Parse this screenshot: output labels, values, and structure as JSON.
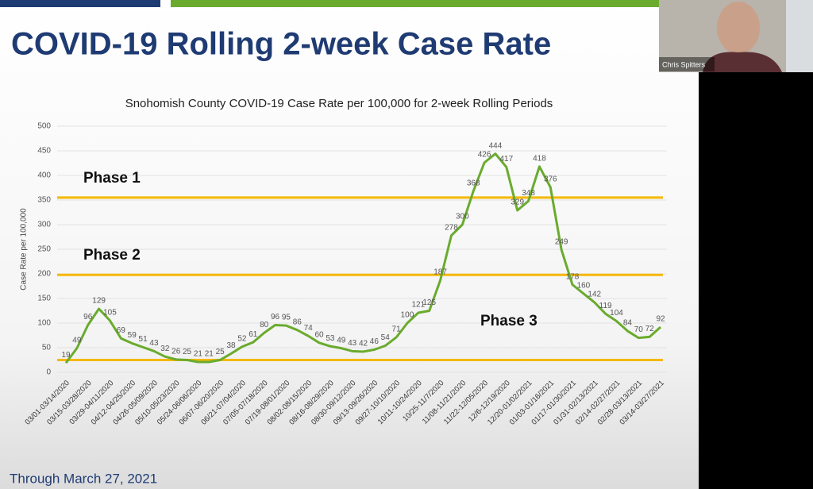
{
  "slide_title": "COVID-19 Rolling 2-week Case Rate",
  "footer": "Through March 27, 2021",
  "participant": {
    "name": "Chris Spitters"
  },
  "chart_data": {
    "type": "line",
    "title": "Snohomish County COVID-19 Case Rate per 100,000 for 2-week Rolling Periods",
    "y_label": "Case Rate per 100,000",
    "categories": [
      "03/01-03/14/2020",
      null,
      "03/15-03/28/2020",
      null,
      "03/29-04/11/2020",
      null,
      "04/12-04/25/2020",
      null,
      "04/26-05/09/2020",
      null,
      "05/10-05/23/2020",
      null,
      "05/24-06/06/2020",
      null,
      "06/07-06/20/2020",
      null,
      "06/21-07/04/2020",
      null,
      "07/05-07/18/2020",
      null,
      "07/19-08/01/2020",
      null,
      "08/02-08/15/2020",
      null,
      "08/16-08/29/2020",
      null,
      "08/30-09/12/2020",
      null,
      "09/13-09/26/2020",
      null,
      "09/27-10/10/2020",
      null,
      "10/11-10/24/2020",
      null,
      "10/25-11/7/2020",
      null,
      "11/08-11/21/2020",
      null,
      "11/22-12/05/2020",
      null,
      "12/6-12/19/2020",
      null,
      "12/20-01/02/2021",
      null,
      "01/03-01/16/2021",
      null,
      "01/17-01/30/2021",
      null,
      "01/31-02/13/2021",
      null,
      "02/14-02/27/2021",
      null,
      "02/28-03/13/2021",
      null,
      "03/14-03/27/2021"
    ],
    "values": [
      19,
      49,
      96,
      129,
      105,
      69,
      59,
      51,
      43,
      32,
      26,
      25,
      21,
      21,
      25,
      38,
      52,
      61,
      80,
      96,
      95,
      86,
      74,
      60,
      53,
      49,
      43,
      42,
      46,
      54,
      71,
      100,
      121,
      125,
      187,
      278,
      300,
      368,
      426,
      444,
      417,
      329,
      348,
      418,
      376,
      249,
      178,
      160,
      142,
      119,
      104,
      84,
      70,
      72,
      92
    ],
    "color": "#6aab2e",
    "ylim": [
      0,
      500
    ],
    "yticks": [
      0,
      50,
      100,
      150,
      200,
      250,
      300,
      350,
      400,
      450,
      500
    ],
    "grid": true,
    "thresholds": [
      {
        "value": 355,
        "label": "Phase 1"
      },
      {
        "value": 198,
        "label": "Phase 2"
      },
      {
        "value": 25,
        "label": "Phase 3"
      }
    ],
    "threshold_color": "#f5b800"
  }
}
